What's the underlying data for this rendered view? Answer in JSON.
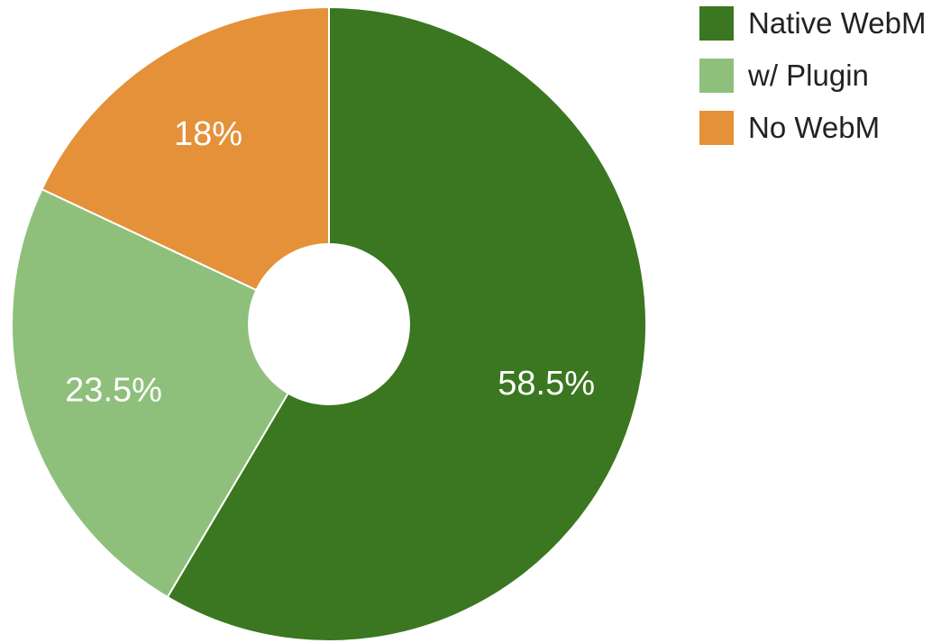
{
  "chart_data": {
    "type": "pie",
    "donut": true,
    "legend_position": "right",
    "slices": [
      {
        "name": "Native WebM",
        "value": 58.5,
        "label": "58.5%",
        "color": "#3a7720"
      },
      {
        "name": "w/ Plugin",
        "value": 23.5,
        "label": "23.5%",
        "color": "#8ec07c"
      },
      {
        "name": "No WebM",
        "value": 18,
        "label": "18%",
        "color": "#e4913a"
      }
    ]
  }
}
